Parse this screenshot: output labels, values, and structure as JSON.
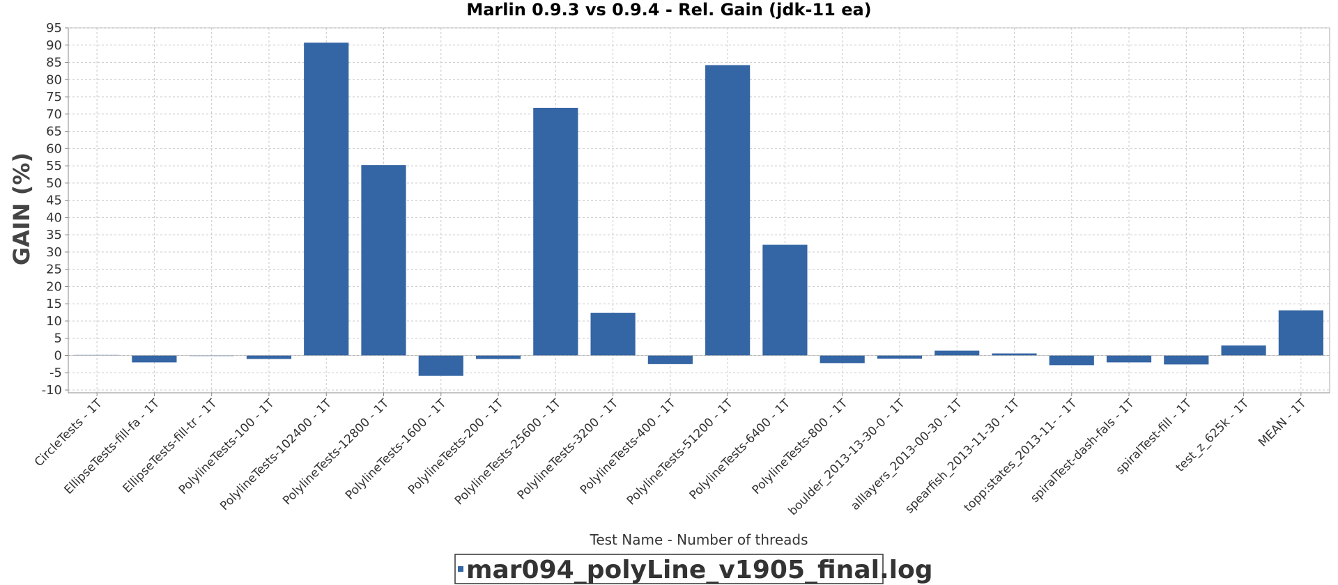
{
  "chart_data": {
    "type": "bar",
    "title": "Marlin 0.9.3 vs 0.9.4 - Rel. Gain (jdk-11 ea)",
    "xlabel": "Test Name - Number of threads",
    "ylabel": "GAIN (%)",
    "ylim": [
      -10,
      95
    ],
    "yticks": [
      -10,
      -5,
      0,
      5,
      10,
      15,
      20,
      25,
      30,
      35,
      40,
      45,
      50,
      55,
      60,
      65,
      70,
      75,
      80,
      85,
      90,
      95
    ],
    "grid": true,
    "legend_position": "bottom",
    "categories": [
      "CircleTests - 1T",
      "EllipseTests-fill-fa - 1T",
      "EllipseTests-fill-tr - 1T",
      "PolylineTests-100 - 1T",
      "PolylineTests-102400 - 1T",
      "PolylineTests-12800 - 1T",
      "PolylineTests-1600 - 1T",
      "PolylineTests-200 - 1T",
      "PolylineTests-25600 - 1T",
      "PolylineTests-3200 - 1T",
      "PolylineTests-400 - 1T",
      "PolylineTests-51200 - 1T",
      "PolylineTests-6400 - 1T",
      "PolylineTests-800 - 1T",
      "boulder_2013-13-30-0 - 1T",
      "alllayers_2013-00-30 - 1T",
      "spearfish_2013-11-30 - 1T",
      "topp:states_2013-11- - 1T",
      "spiralTest-dash-fals - 1T",
      "spiralTest-fill - 1T",
      "test_z_625k - 1T",
      "MEAN - 1T"
    ],
    "series": [
      {
        "name": "mar094_polyLine_v1905_final.log",
        "color": "#3465a4",
        "values": [
          0.2,
          -2.0,
          0.0,
          -1.0,
          90.7,
          55.2,
          -5.9,
          -1.0,
          71.8,
          12.4,
          -2.5,
          84.2,
          32.1,
          -2.2,
          -0.9,
          1.4,
          0.6,
          -2.8,
          -2.0,
          -2.6,
          2.9,
          13.1
        ]
      }
    ]
  }
}
